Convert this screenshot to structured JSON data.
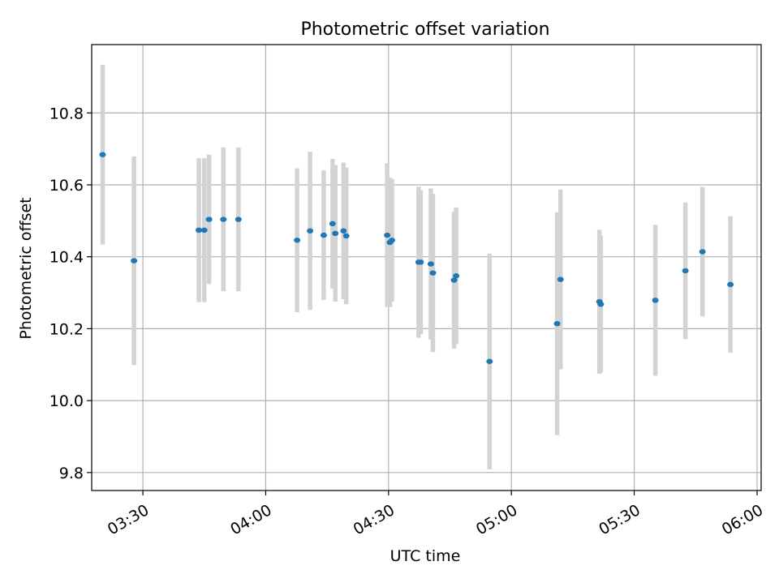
{
  "chart_data": {
    "type": "scatter",
    "title": "Photometric offset variation",
    "xlabel": "UTC time",
    "ylabel": "Photometric offset",
    "xlim": [
      "03:17:30",
      "06:01:00"
    ],
    "ylim": [
      9.75,
      10.99
    ],
    "x_ticks": [
      "03:30",
      "04:00",
      "04:30",
      "05:00",
      "05:30",
      "06:00"
    ],
    "y_ticks": [
      "9.8",
      "10.0",
      "10.2",
      "10.4",
      "10.6",
      "10.8"
    ],
    "grid": true,
    "marker_color": "#1f77b4",
    "errorbar_color": "#d3d3d3",
    "points": [
      {
        "x": "03:20:10",
        "y": 10.684,
        "yerr": 0.25
      },
      {
        "x": "03:27:50",
        "y": 10.389,
        "yerr": 0.29
      },
      {
        "x": "03:43:40",
        "y": 10.474,
        "yerr": 0.2
      },
      {
        "x": "03:45:00",
        "y": 10.474,
        "yerr": 0.2
      },
      {
        "x": "03:46:10",
        "y": 10.504,
        "yerr": 0.18
      },
      {
        "x": "03:49:40",
        "y": 10.504,
        "yerr": 0.2
      },
      {
        "x": "03:53:20",
        "y": 10.504,
        "yerr": 0.2
      },
      {
        "x": "04:07:40",
        "y": 10.446,
        "yerr": 0.2
      },
      {
        "x": "04:10:50",
        "y": 10.472,
        "yerr": 0.22
      },
      {
        "x": "04:14:10",
        "y": 10.46,
        "yerr": 0.18
      },
      {
        "x": "04:16:20",
        "y": 10.492,
        "yerr": 0.18
      },
      {
        "x": "04:17:00",
        "y": 10.465,
        "yerr": 0.19
      },
      {
        "x": "04:19:00",
        "y": 10.472,
        "yerr": 0.19
      },
      {
        "x": "04:19:40",
        "y": 10.458,
        "yerr": 0.19
      },
      {
        "x": "04:29:40",
        "y": 10.46,
        "yerr": 0.2
      },
      {
        "x": "04:30:20",
        "y": 10.44,
        "yerr": 0.18
      },
      {
        "x": "04:30:50",
        "y": 10.446,
        "yerr": 0.17
      },
      {
        "x": "04:37:20",
        "y": 10.385,
        "yerr": 0.21
      },
      {
        "x": "04:37:50",
        "y": 10.385,
        "yerr": 0.2
      },
      {
        "x": "04:40:20",
        "y": 10.38,
        "yerr": 0.21
      },
      {
        "x": "04:40:50",
        "y": 10.355,
        "yerr": 0.22
      },
      {
        "x": "04:46:00",
        "y": 10.335,
        "yerr": 0.19
      },
      {
        "x": "04:46:30",
        "y": 10.347,
        "yerr": 0.19
      },
      {
        "x": "04:54:40",
        "y": 10.109,
        "yerr": 0.3
      },
      {
        "x": "05:11:10",
        "y": 10.214,
        "yerr": 0.31
      },
      {
        "x": "05:12:00",
        "y": 10.337,
        "yerr": 0.25
      },
      {
        "x": "05:21:30",
        "y": 10.275,
        "yerr": 0.2
      },
      {
        "x": "05:21:50",
        "y": 10.268,
        "yerr": 0.19
      },
      {
        "x": "05:35:10",
        "y": 10.279,
        "yerr": 0.21
      },
      {
        "x": "05:42:30",
        "y": 10.361,
        "yerr": 0.19
      },
      {
        "x": "05:46:40",
        "y": 10.414,
        "yerr": 0.18
      },
      {
        "x": "05:53:30",
        "y": 10.323,
        "yerr": 0.19
      }
    ]
  }
}
